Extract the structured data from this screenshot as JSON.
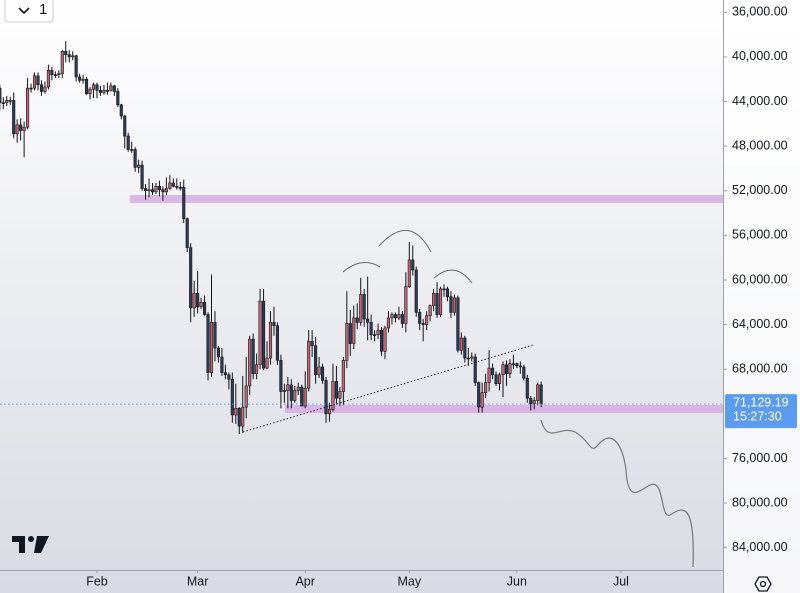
{
  "interval": "1",
  "chart_data": {
    "type": "candlestick",
    "categories": [
      null,
      null,
      null,
      null,
      null,
      null,
      null,
      null,
      null,
      null,
      null,
      null,
      null,
      null,
      null,
      null,
      null,
      null,
      null,
      null,
      null,
      null,
      null,
      null,
      null,
      null,
      null,
      null,
      null,
      null,
      null,
      null,
      null,
      null,
      null,
      null,
      null,
      null,
      null,
      null,
      null,
      null,
      null,
      null,
      null,
      null,
      null,
      null,
      null,
      null,
      null,
      null,
      null,
      null,
      null,
      null,
      null,
      null,
      null,
      null,
      null,
      null,
      null,
      null,
      null,
      null,
      null,
      null,
      null,
      null,
      null,
      null,
      null,
      null,
      null,
      null,
      null,
      null,
      null,
      null,
      null,
      null,
      null,
      null,
      null,
      null,
      null,
      null,
      null,
      null,
      null,
      null,
      null,
      null,
      null,
      null,
      null,
      null,
      null,
      null,
      null,
      null,
      null,
      null,
      null,
      null,
      null,
      null,
      null,
      null,
      null,
      null,
      null,
      null,
      null,
      null,
      null,
      null,
      null,
      null,
      null,
      null,
      null,
      null,
      null,
      null,
      null,
      null,
      null,
      null,
      null,
      null,
      null,
      null,
      null,
      null,
      null,
      null,
      null,
      null,
      null,
      null,
      null,
      null,
      null,
      null,
      null,
      null,
      null,
      null,
      null,
      null,
      null,
      null,
      null,
      null,
      null,
      null
    ],
    "open": [
      42200,
      42800,
      44100,
      44100,
      43900,
      43900,
      46900,
      46100,
      46600,
      46300,
      42800,
      42800,
      41700,
      42500,
      43100,
      42700,
      41200,
      41600,
      41600,
      41500,
      39500,
      39800,
      40000,
      39900,
      41800,
      42100,
      42000,
      43300,
      42900,
      42500,
      43000,
      43200,
      43000,
      43000,
      42600,
      43100,
      44300,
      45300,
      47100,
      48300,
      48300,
      49900,
      49700,
      51800,
      52000,
      51900,
      52100,
      51600,
      51900,
      52100,
      51800,
      51300,
      51600,
      51700,
      51700,
      54500,
      57100,
      62500,
      61200,
      62400,
      62000,
      63100,
      68300,
      63800,
      66100,
      66900,
      68300,
      68500,
      68900,
      72100,
      71500,
      73100,
      71400,
      69500,
      65300,
      68400,
      67600,
      61900,
      67900,
      67000,
      63800,
      64100,
      67200,
      70000,
      69900,
      69400,
      70800,
      69900,
      69600,
      71300,
      69700,
      65500,
      65900,
      68500,
      67800,
      69000,
      72000,
      71600,
      69100,
      70600,
      70000,
      67200,
      63900,
      65700,
      63400,
      63800,
      61300,
      63500,
      63800,
      64900,
      64900,
      64500,
      66400,
      64300,
      63400,
      63100,
      63400,
      63100,
      63900,
      60600,
      58200,
      59100,
      62900,
      63900,
      64000,
      63200,
      62300,
      61200,
      63100,
      60800,
      60800,
      61500,
      62900,
      61600,
      66300,
      65200,
      67000,
      67000,
      66900,
      69200,
      71400,
      70100,
      69200,
      67900,
      68500,
      69300,
      68500,
      67600,
      68400,
      67500,
      67500,
      67700,
      67800,
      68800,
      70600,
      71100,
      70800,
      69400
    ],
    "high": [
      43300,
      44800,
      44700,
      44400,
      44300,
      47300,
      47700,
      47500,
      49000,
      46500,
      43200,
      43000,
      43000,
      43500,
      43300,
      42900,
      42100,
      41900,
      41900,
      41900,
      40500,
      40500,
      40300,
      42200,
      42300,
      42400,
      43400,
      43800,
      43700,
      43700,
      43500,
      43400,
      43400,
      43100,
      43500,
      44500,
      45600,
      48200,
      48500,
      48600,
      50300,
      50400,
      52000,
      52800,
      52600,
      52400,
      52300,
      52500,
      52900,
      52400,
      51900,
      51700,
      51900,
      52000,
      54900,
      57500,
      63800,
      63300,
      63000,
      62600,
      63200,
      69000,
      68700,
      67300,
      67400,
      68600,
      68900,
      69800,
      72800,
      72900,
      73800,
      73700,
      72400,
      70300,
      68900,
      68900,
      68000,
      68100,
      68000,
      67600,
      65000,
      67600,
      71500,
      71000,
      71500,
      71500,
      71000,
      70300,
      71300,
      71500,
      70000,
      66900,
      69300,
      68800,
      69300,
      72800,
      72700,
      71800,
      71200,
      71300,
      71200,
      67900,
      66800,
      66200,
      64400,
      64100,
      64200,
      65400,
      65400,
      65500,
      65300,
      66800,
      67100,
      64700,
      64000,
      63800,
      63600,
      64300,
      64700,
      60700,
      59600,
      63300,
      64500,
      65500,
      64500,
      63700,
      62800,
      63400,
      63300,
      61500,
      61900,
      63400,
      63200,
      66500,
      66700,
      67400,
      67700,
      67300,
      69500,
      71900,
      71900,
      70600,
      70000,
      68900,
      69500,
      69900,
      70500,
      69500,
      68800,
      68000,
      67900,
      68400,
      69000,
      71000,
      71700,
      71600,
      71200,
      71400
    ],
    "low": [
      41700,
      42500,
      43600,
      43500,
      43600,
      43200,
      45600,
      45500,
      45800,
      41900,
      42400,
      41400,
      41400,
      42100,
      42200,
      40700,
      40900,
      41300,
      41200,
      39400,
      38600,
      39400,
      39500,
      39800,
      41500,
      41600,
      41800,
      42700,
      42300,
      42300,
      42600,
      42500,
      42300,
      42300,
      42500,
      42800,
      44200,
      45200,
      46800,
      47600,
      48100,
      49200,
      49300,
      51400,
      50900,
      51300,
      51300,
      51100,
      51600,
      50800,
      50600,
      50900,
      50900,
      51200,
      51000,
      54400,
      56700,
      60100,
      59200,
      61600,
      61400,
      62900,
      59500,
      62800,
      65900,
      66100,
      67600,
      68300,
      68300,
      69300,
      71400,
      68600,
      66900,
      65000,
      64800,
      66600,
      60800,
      60800,
      65500,
      62800,
      62400,
      63800,
      66700,
      69300,
      68700,
      68900,
      69500,
      69200,
      69400,
      68200,
      64500,
      64500,
      65100,
      66900,
      67500,
      68700,
      71000,
      67500,
      67700,
      69600,
      66900,
      61000,
      62700,
      62300,
      62100,
      59800,
      60800,
      59700,
      63100,
      64500,
      63900,
      64200,
      64100,
      62800,
      62900,
      62900,
      62400,
      62800,
      59300,
      56600,
      56900,
      58800,
      62600,
      63500,
      62800,
      62200,
      60800,
      60200,
      60600,
      60400,
      60600,
      61000,
      61300,
      61400,
      64700,
      65000,
      66100,
      66500,
      66600,
      69100,
      69200,
      68400,
      66300,
      67500,
      68200,
      68300,
      67300,
      67200,
      67100,
      66700,
      67400,
      67300,
      67600,
      68500,
      70400,
      70500,
      69200,
      69100
    ],
    "close": [
      42800,
      44100,
      44100,
      43900,
      43900,
      46900,
      46100,
      46600,
      46300,
      42800,
      42800,
      41700,
      42500,
      43100,
      42700,
      41200,
      41600,
      41600,
      41500,
      39500,
      39800,
      40000,
      39900,
      41800,
      42100,
      42000,
      43300,
      42900,
      42500,
      43000,
      43200,
      43000,
      43000,
      42600,
      43100,
      44300,
      45300,
      47100,
      48300,
      48300,
      49900,
      49700,
      51800,
      52000,
      51900,
      52100,
      51600,
      51900,
      52100,
      51800,
      51300,
      51600,
      51700,
      51700,
      54500,
      57100,
      62500,
      61200,
      62400,
      62000,
      63100,
      68300,
      63800,
      66100,
      66900,
      68300,
      68500,
      68900,
      72100,
      71500,
      73100,
      71400,
      69500,
      65300,
      68400,
      67600,
      61900,
      67900,
      67000,
      63800,
      64100,
      67200,
      70000,
      69900,
      69400,
      70800,
      69900,
      69600,
      71300,
      69700,
      65500,
      65900,
      68500,
      67800,
      69000,
      72000,
      71600,
      69100,
      70600,
      70000,
      67200,
      63900,
      65700,
      63400,
      63800,
      61300,
      63500,
      63800,
      64900,
      64900,
      64500,
      66400,
      64300,
      63400,
      63100,
      63400,
      63100,
      63900,
      60600,
      58200,
      59100,
      62900,
      63900,
      64000,
      63200,
      62300,
      61200,
      63100,
      60800,
      60800,
      61500,
      62900,
      61600,
      66300,
      65200,
      67000,
      67000,
      66900,
      69200,
      71400,
      70100,
      69200,
      67900,
      68500,
      69300,
      68500,
      67600,
      68400,
      67500,
      67500,
      67700,
      67800,
      68800,
      70600,
      71100,
      70800,
      69400,
      71129.19
    ],
    "up_color": "#2e3b58",
    "down_color": "#c0687a",
    "wick_color": "#141414",
    "price_label": "71,129.19",
    "countdown": "15:27:30",
    "price_color": "#5b9bf0",
    "inverted": true,
    "grid": false,
    "xlim": [
      1.05,
      209.4
    ],
    "xticks": [
      {
        "value": 29,
        "label": "Feb"
      },
      {
        "value": 58,
        "label": "Mar"
      },
      {
        "value": 89,
        "label": "Apr"
      },
      {
        "value": 119,
        "label": "May"
      },
      {
        "value": 150,
        "label": "Jun"
      },
      {
        "value": 180,
        "label": "Jul"
      }
    ],
    "ylim": [
      34900,
      86000
    ],
    "yticks": [
      {
        "value": 36000,
        "label": "36,000.00"
      },
      {
        "value": 40000,
        "label": "40,000.00"
      },
      {
        "value": 44000,
        "label": "44,000.00"
      },
      {
        "value": 48000,
        "label": "48,000.00"
      },
      {
        "value": 52000,
        "label": "52,000.00"
      },
      {
        "value": 56000,
        "label": "56,000.00"
      },
      {
        "value": 60000,
        "label": "60,000.00"
      },
      {
        "value": 64000,
        "label": "64,000.00"
      },
      {
        "value": 68000,
        "label": "68,000.00"
      },
      {
        "value": 76000,
        "label": "76,000.00"
      },
      {
        "value": 80000,
        "label": "80,000.00"
      },
      {
        "value": 84000,
        "label": "84,000.00"
      }
    ]
  }
}
